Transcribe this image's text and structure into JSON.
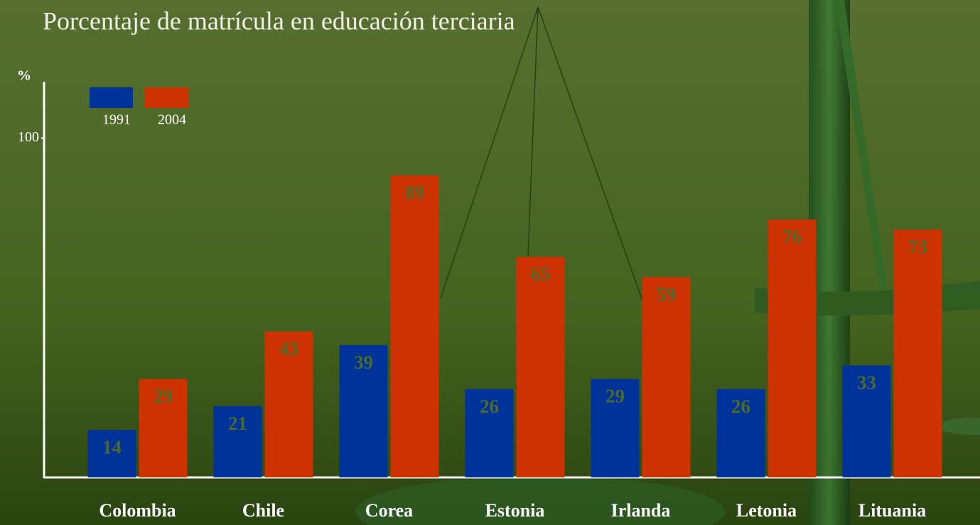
{
  "chart_data": {
    "type": "bar",
    "title": "Porcentaje de matrícula en educación terciaria",
    "y_label": "%",
    "categories": [
      "Colombia",
      "Chile",
      "Corea",
      "Estonia",
      "Irlanda",
      "Letonia",
      "Lituania"
    ],
    "series": [
      {
        "name": "1991",
        "color": "#003399",
        "values": [
          14,
          21,
          39,
          26,
          29,
          26,
          33
        ]
      },
      {
        "name": "2004",
        "color": "#cc3300",
        "values": [
          29,
          43,
          89,
          65,
          59,
          76,
          73
        ]
      }
    ],
    "ylim": [
      0,
      116
    ],
    "yticks": [
      100
    ],
    "grid": false
  }
}
